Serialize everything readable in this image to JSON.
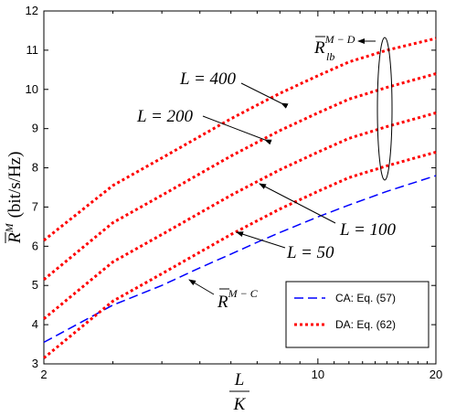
{
  "chart_data": {
    "type": "line",
    "xscale": "log",
    "xlim": [
      2,
      20
    ],
    "ylim": [
      3,
      12
    ],
    "xticks": [
      "2",
      "10",
      "20"
    ],
    "yticks": [
      "3",
      "4",
      "5",
      "6",
      "7",
      "8",
      "9",
      "10",
      "11",
      "12"
    ],
    "xlabel": {
      "num": "L",
      "den": "K"
    },
    "ylabel": {
      "sym": "R",
      "sup": "M",
      "unit": "(bit/s/Hz)"
    },
    "grid": false,
    "legend": {
      "placement": "bottom-right",
      "entries": [
        {
          "label": "CA: Eq. (57)",
          "style": "dashed",
          "color": "#0000ff"
        },
        {
          "label": "DA: Eq. (62)",
          "style": "dotted",
          "color": "#ff0000"
        }
      ]
    },
    "series": [
      {
        "name": "",
        "group": "CA",
        "color": "#0000ff",
        "x": [
          2,
          3,
          4,
          5,
          6,
          7,
          8,
          10,
          12,
          15,
          20
        ],
        "y": [
          3.55,
          4.5,
          5.0,
          5.45,
          5.8,
          6.1,
          6.35,
          6.75,
          7.05,
          7.4,
          7.8
        ]
      },
      {
        "name": "",
        "group": "DA",
        "color": "#ff0000",
        "x": [
          2,
          3,
          4,
          5,
          6,
          7,
          8,
          10,
          12,
          15,
          20
        ],
        "y": [
          3.15,
          4.6,
          5.3,
          5.85,
          6.3,
          6.65,
          6.95,
          7.4,
          7.75,
          8.05,
          8.4
        ]
      },
      {
        "name": "",
        "group": "DA",
        "color": "#ff0000",
        "x": [
          2,
          3,
          4,
          5,
          6,
          7,
          8,
          10,
          12,
          15,
          20
        ],
        "y": [
          4.15,
          5.6,
          6.3,
          6.85,
          7.3,
          7.65,
          7.95,
          8.4,
          8.75,
          9.05,
          9.4
        ]
      },
      {
        "name": "",
        "group": "DA",
        "color": "#ff0000",
        "x": [
          2,
          3,
          4,
          5,
          6,
          7,
          8,
          10,
          12,
          15,
          20
        ],
        "y": [
          5.15,
          6.6,
          7.3,
          7.85,
          8.3,
          8.65,
          8.95,
          9.4,
          9.75,
          10.05,
          10.4
        ]
      },
      {
        "name": "",
        "group": "DA",
        "color": "#ff0000",
        "x": [
          2,
          3,
          4,
          5,
          6,
          7,
          8,
          10,
          12,
          15,
          20
        ],
        "y": [
          6.15,
          7.55,
          8.25,
          8.8,
          9.25,
          9.6,
          9.9,
          10.35,
          10.7,
          11.0,
          11.3
        ]
      }
    ],
    "annotations": [
      {
        "id": "L400",
        "text": "L = 400"
      },
      {
        "id": "L200",
        "text": "L = 200"
      },
      {
        "id": "L100",
        "text": "L = 100"
      },
      {
        "id": "L50",
        "text": "L = 50"
      },
      {
        "id": "RMD",
        "sym": "R",
        "sub": "lb",
        "sup": "M − D"
      },
      {
        "id": "RMC",
        "sym": "R",
        "sup": "M − C"
      }
    ]
  }
}
